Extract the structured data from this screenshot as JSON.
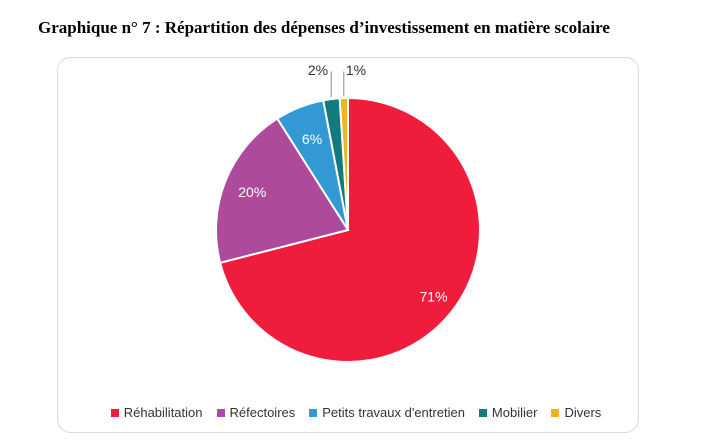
{
  "page_title": "Graphique n° 7 :  Répartition des dépenses d’investissement en matière scolaire",
  "chart_data": {
    "type": "pie",
    "title": "Graphique n° 7 :  Répartition des dépenses d’investissement en matière scolaire",
    "categories": [
      "Réhabilitation",
      "Réfectoires",
      "Petits travaux d'entretien",
      "Mobilier",
      "Divers"
    ],
    "values": [
      71,
      20,
      6,
      2,
      1
    ],
    "labels": [
      "71%",
      "20%",
      "6%",
      "2%",
      "1%"
    ],
    "colors": [
      "#ef1d3b",
      "#ae4a9c",
      "#3399d4",
      "#137b7b",
      "#f2b31c"
    ],
    "label_colors": [
      "#ffffff",
      "#ffffff",
      "#ffffff",
      "#333333",
      "#333333"
    ],
    "legend_position": "bottom",
    "start": "12 o'clock, clockwise"
  }
}
